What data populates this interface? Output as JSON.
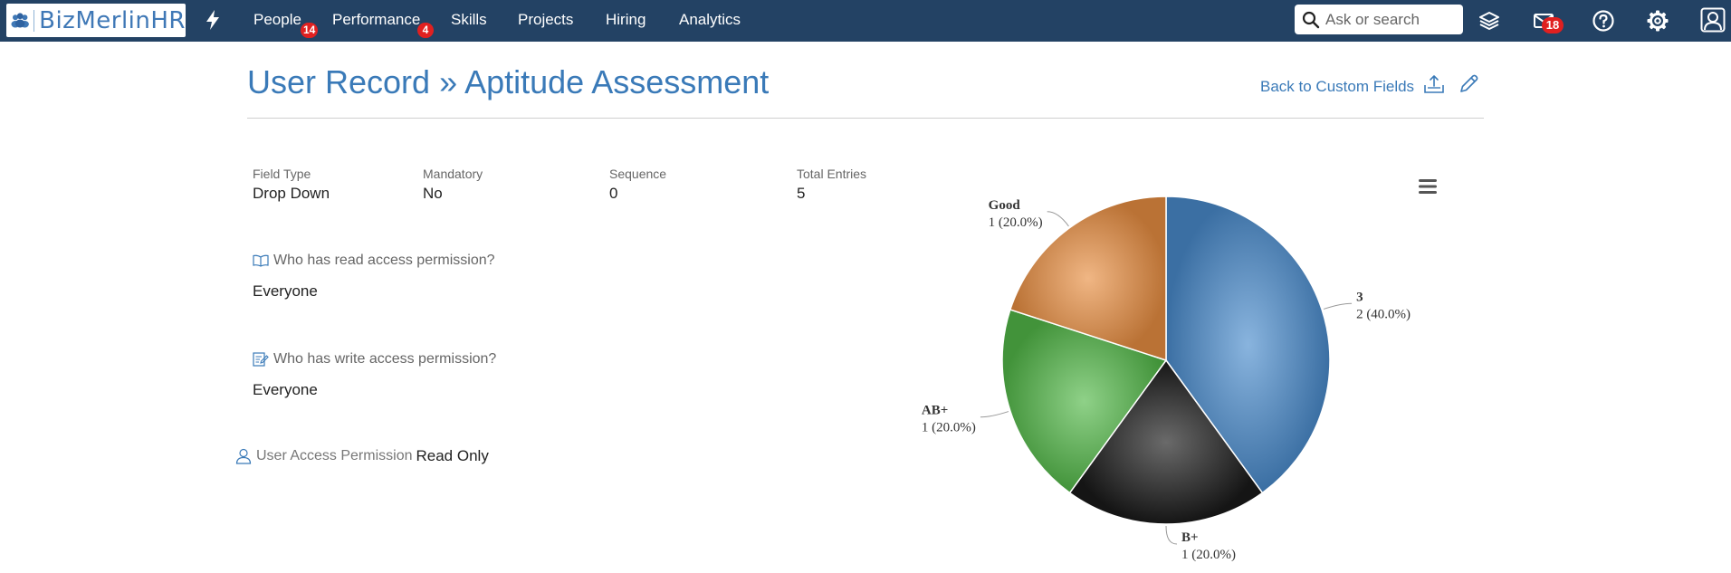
{
  "navbar": {
    "logo_text": "BizMerlinHR",
    "items": [
      {
        "label": "People",
        "badge": "14"
      },
      {
        "label": "Performance",
        "badge": "4"
      },
      {
        "label": "Skills"
      },
      {
        "label": "Projects"
      },
      {
        "label": "Hiring"
      },
      {
        "label": "Analytics"
      }
    ],
    "search_placeholder": "Ask or search",
    "messages_badge": "18",
    "icons": [
      "flash-icon",
      "layers-icon",
      "mail-icon",
      "help-icon",
      "gear-icon",
      "user-icon"
    ]
  },
  "header": {
    "title": "User Record » Aptitude Assessment",
    "back_link": "Back to Custom Fields"
  },
  "field": {
    "field_type_label": "Field Type",
    "field_type_value": "Drop Down",
    "mandatory_label": "Mandatory",
    "mandatory_value": "No",
    "sequence_label": "Sequence",
    "sequence_value": "0",
    "total_entries_label": "Total Entries",
    "total_entries_value": "5",
    "read_question": "Who has read access permission?",
    "read_value": "Everyone",
    "write_question": "Who has write access permission?",
    "write_value": "Everyone",
    "user_access_label": "User Access Permission",
    "user_access_value": "Read Only"
  },
  "colors": {
    "navbar": "#234264",
    "accent": "#3a7ab8",
    "badge": "#e02020"
  },
  "chart_data": {
    "type": "pie",
    "slices": [
      {
        "label": "3",
        "count": 2,
        "percent": 40.0,
        "color": "#4a8bcc"
      },
      {
        "label": "B+",
        "count": 1,
        "percent": 20.0,
        "color": "#1a1a1a"
      },
      {
        "label": "AB+",
        "count": 1,
        "percent": 20.0,
        "color": "#52b848"
      },
      {
        "label": "Good",
        "count": 1,
        "percent": 20.0,
        "color": "#e88e42"
      }
    ]
  }
}
